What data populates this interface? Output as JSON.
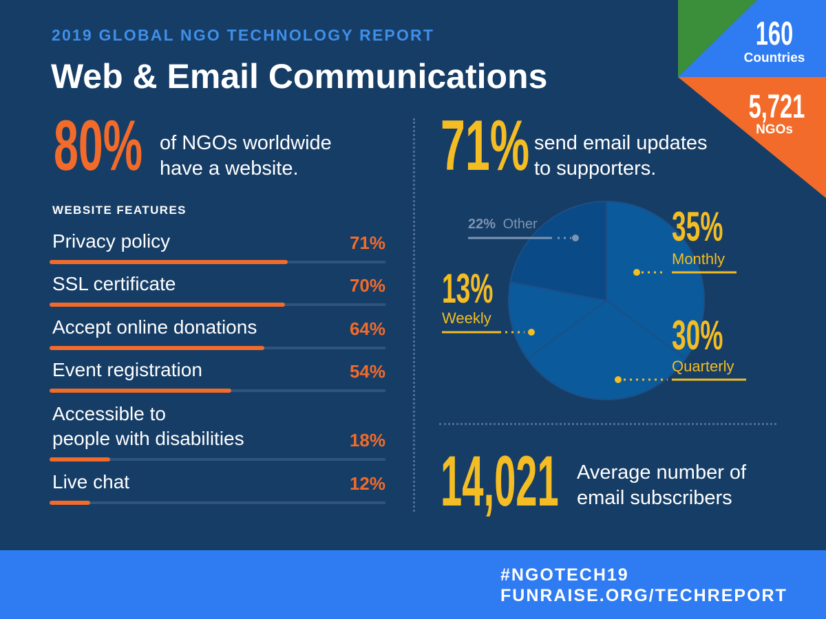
{
  "header": {
    "report_label": "2019 GLOBAL NGO TECHNOLOGY REPORT",
    "title": "Web & Email Communications"
  },
  "badges": {
    "countries_value": "160",
    "countries_label": "Countries",
    "ngos_value": "5,721",
    "ngos_label": "NGOs"
  },
  "stats": {
    "website_pct": "80%",
    "website_line1": "of NGOs worldwide",
    "website_line2": "have a website.",
    "email_pct": "71%",
    "email_line1": "send email updates",
    "email_line2": "to supporters.",
    "subscribers_value": "14,021",
    "subscribers_line1": "Average number of",
    "subscribers_line2": "email subscribers"
  },
  "features": {
    "heading": "WEBSITE FEATURES",
    "items": [
      {
        "label": "Privacy policy",
        "value": "71%",
        "fraction": 0.71
      },
      {
        "label": "SSL certificate",
        "value": "70%",
        "fraction": 0.7
      },
      {
        "label": "Accept online donations",
        "value": "64%",
        "fraction": 0.64
      },
      {
        "label": "Event registration",
        "value": "54%",
        "fraction": 0.54
      },
      {
        "label_line1": "Accessible to",
        "label_line2": "people with disabilities",
        "value": "18%",
        "fraction": 0.18
      },
      {
        "label": "Live chat",
        "value": "12%",
        "fraction": 0.12
      }
    ]
  },
  "chart_data": {
    "type": "pie",
    "slices": [
      {
        "label": "Monthly",
        "value": 35,
        "value_text": "35%"
      },
      {
        "label": "Quarterly",
        "value": 30,
        "value_text": "30%"
      },
      {
        "label": "Weekly",
        "value": 13,
        "value_text": "13%"
      },
      {
        "label": "Other",
        "value": 22,
        "value_text": "22%"
      }
    ]
  },
  "footer": {
    "hashtag": "#NGOTECH19",
    "url": "FUNRAISE.ORG/TECHREPORT"
  },
  "colors": {
    "background": "#163d66",
    "orange": "#f26b2a",
    "yellow": "#f4bd23",
    "blue": "#2f7bf2",
    "green": "#3c8f3a",
    "pie_main": "#0a5a9c",
    "pie_other": "#0a4a87"
  }
}
